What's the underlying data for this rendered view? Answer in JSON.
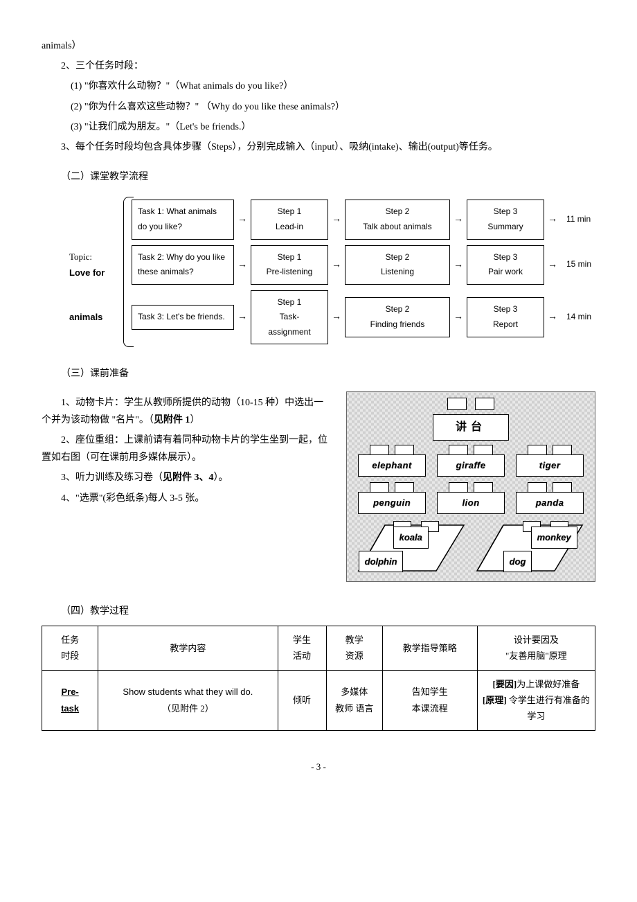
{
  "top": {
    "tail": "animals）",
    "p2": "2、三个任务时段：",
    "q1": "(1) \"你喜欢什么动物？\"（What animals do you like?）",
    "q2": "(2) \"你为什么喜欢这些动物？\"  （Why do you like these animals?）",
    "q3": "(3) \"让我们成为朋友。\"（Let's be friends.）",
    "p3": "3、每个任务时段均包含具体步骤（Steps），分别完成输入（input）、吸纳(intake)、输出(output)等任务。"
  },
  "section2_title": "（二）课堂教学流程",
  "flow": {
    "topic_line1": "Topic:",
    "topic_line2": "Love for",
    "topic_line3": "animals",
    "rows": [
      {
        "task": "Task 1: What animals do you like?",
        "steps": [
          "Step 1\nLead-in",
          "Step 2\nTalk about animals",
          "Step 3\nSummary"
        ],
        "time": "11 min"
      },
      {
        "task": "Task 2: Why do you like these animals?",
        "steps": [
          "Step 1\nPre-listening",
          "Step 2\nListening",
          "Step 3\nPair work"
        ],
        "time": "15 min"
      },
      {
        "task": "Task 3: Let's be friends.",
        "steps": [
          "Step 1\nTask-assignment",
          "Step 2\nFinding friends",
          "Step 3\nReport"
        ],
        "time": "14 min"
      }
    ]
  },
  "section3_title": "（三）课前准备",
  "prep": {
    "p1a": "1、动物卡片：学生从教师所提供的动物（10-15 种）中选出一个并为该动物做 \"名片\"。（",
    "p1b": "见附件 1",
    "p1c": "）",
    "p2": "2、座位重组：上课前请有着同种动物卡片的学生坐到一起，位置如右图（可在课前用多媒体展示）。",
    "p3a": "3、听力训练及练习卷（",
    "p3b": "见附件 3、4",
    "p3c": "）。",
    "p4": "4、\"选票\"(彩色纸条)每人 3-5 张。"
  },
  "seating": {
    "podium": "讲台",
    "row1": [
      "elephant",
      "giraffe",
      "tiger"
    ],
    "row2": [
      "penguin",
      "lion",
      "panda"
    ],
    "diag_left": [
      "koala",
      "dolphin"
    ],
    "diag_right": [
      "monkey",
      "dog"
    ]
  },
  "section4_title": "（四）教学过程",
  "table": {
    "headers": [
      "任务\n时段",
      "教学内容",
      "学生\n活动",
      "教学\n资源",
      "教学指导策略",
      "设计要因及\n\"友善用脑\"原理"
    ],
    "row": {
      "phase": "Pre-\ntask",
      "content_a": "Show students what they will do.",
      "content_b": "（见附件 2）",
      "activity": "倾听",
      "resource": "多媒体\n教师 语言",
      "strategy": "告知学生\n本课流程",
      "design_a": "[要因]",
      "design_at": "为上课做好准备",
      "design_b": "[原理]",
      "design_bt": " 令学生进行有准备的学习"
    }
  },
  "page_num": "- 3 -"
}
